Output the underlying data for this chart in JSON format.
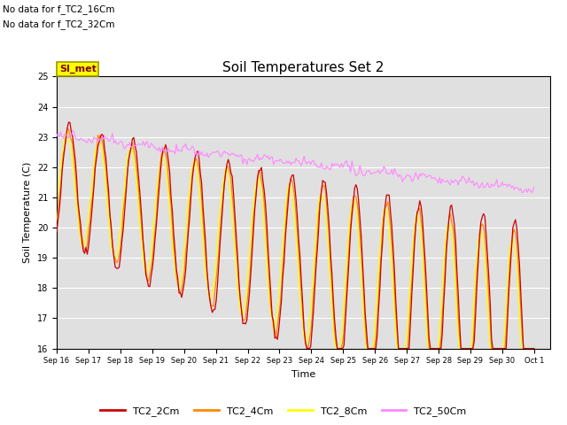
{
  "title": "Soil Temperatures Set 2",
  "xlabel": "Time",
  "ylabel": "Soil Temperature (C)",
  "ylim": [
    16.0,
    25.0
  ],
  "yticks": [
    16.0,
    17.0,
    18.0,
    19.0,
    20.0,
    21.0,
    22.0,
    23.0,
    24.0,
    25.0
  ],
  "xtick_labels": [
    "Sep 16",
    "Sep 17",
    "Sep 18",
    "Sep 19",
    "Sep 20",
    "Sep 21",
    "Sep 22",
    "Sep 23",
    "Sep 24",
    "Sep 25",
    "Sep 26",
    "Sep 27",
    "Sep 28",
    "Sep 29",
    "Sep 30",
    "Oct 1"
  ],
  "no_data_text": [
    "No data for f_TC2_16Cm",
    "No data for f_TC2_32Cm"
  ],
  "si_met_label": "SI_met",
  "colors": {
    "TC2_2Cm": "#cc0000",
    "TC2_4Cm": "#ff8800",
    "TC2_8Cm": "#ffff00",
    "TC2_50Cm": "#ff88ff"
  },
  "legend_labels": [
    "TC2_2Cm",
    "TC2_4Cm",
    "TC2_8Cm",
    "TC2_50Cm"
  ],
  "figsize": [
    6.4,
    4.8
  ],
  "dpi": 100
}
